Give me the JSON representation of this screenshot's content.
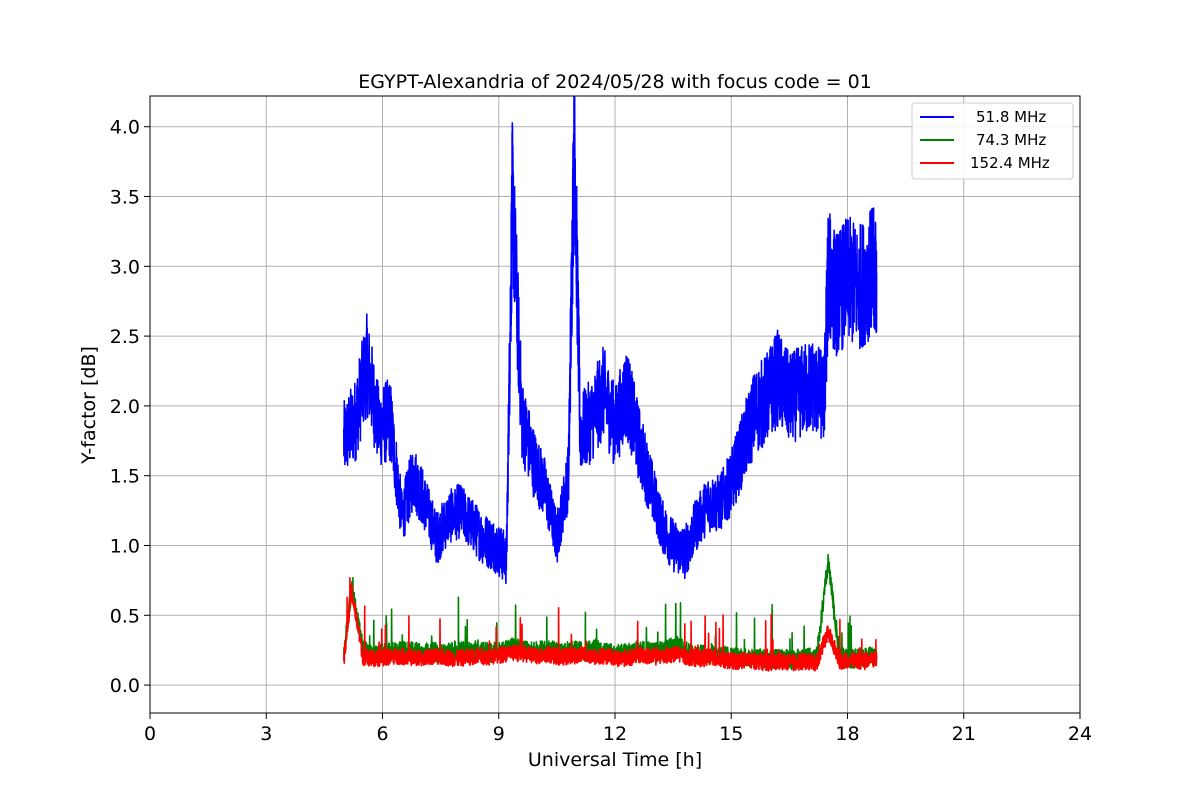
{
  "chart_data": {
    "type": "line",
    "title": "EGYPT-Alexandria of 2024/05/28 with focus code = 01",
    "xlabel": "Universal Time [h]",
    "ylabel": "Y-factor [dB]",
    "xlim": [
      0,
      24
    ],
    "ylim": [
      -0.2,
      4.22
    ],
    "xticks": [
      "0",
      "3",
      "6",
      "9",
      "12",
      "15",
      "18",
      "21",
      "24"
    ],
    "yticks": [
      "0.0",
      "0.5",
      "1.0",
      "1.5",
      "2.0",
      "2.5",
      "3.0",
      "3.5",
      "4.0"
    ],
    "grid": true,
    "legend_position": "top-right",
    "series": [
      {
        "name": "51.8 MHz",
        "color": "#0000ff",
        "x": [
          5.0,
          5.3,
          5.6,
          5.9,
          6.2,
          6.5,
          6.8,
          7.1,
          7.4,
          7.7,
          8.0,
          8.3,
          8.6,
          8.9,
          9.2,
          9.35,
          9.6,
          9.9,
          10.2,
          10.5,
          10.8,
          10.95,
          11.1,
          11.4,
          11.7,
          12.0,
          12.3,
          12.6,
          12.9,
          13.2,
          13.5,
          13.8,
          14.1,
          14.4,
          14.7,
          15.0,
          15.3,
          15.6,
          15.9,
          16.2,
          16.5,
          16.8,
          17.1,
          17.4,
          17.5,
          17.7,
          18.0,
          18.3,
          18.6,
          18.75
        ],
        "values": [
          1.75,
          1.9,
          2.3,
          1.85,
          1.9,
          1.2,
          1.5,
          1.3,
          1.05,
          1.2,
          1.25,
          1.15,
          1.05,
          1.0,
          0.9,
          3.5,
          1.9,
          1.6,
          1.4,
          1.05,
          1.5,
          4.02,
          1.8,
          1.9,
          2.1,
          1.85,
          2.1,
          1.75,
          1.45,
          1.15,
          1.0,
          0.95,
          1.15,
          1.3,
          1.3,
          1.45,
          1.7,
          1.95,
          2.05,
          2.2,
          2.05,
          2.1,
          2.15,
          2.05,
          2.95,
          2.8,
          2.9,
          2.85,
          2.95,
          2.95
        ]
      },
      {
        "name": "74.3 MHz",
        "color": "#008000",
        "x": [
          5.0,
          5.2,
          5.5,
          5.8,
          6.1,
          6.4,
          6.7,
          7.0,
          7.3,
          7.6,
          7.9,
          8.2,
          8.5,
          8.8,
          9.1,
          9.4,
          9.7,
          10.0,
          10.3,
          10.6,
          10.9,
          11.2,
          11.5,
          11.8,
          12.1,
          12.4,
          12.7,
          13.0,
          13.3,
          13.6,
          13.9,
          14.2,
          14.5,
          14.8,
          15.1,
          15.4,
          15.7,
          16.0,
          16.3,
          16.6,
          16.9,
          17.2,
          17.5,
          17.8,
          18.1,
          18.4,
          18.75
        ],
        "values": [
          0.2,
          0.7,
          0.25,
          0.22,
          0.23,
          0.24,
          0.25,
          0.23,
          0.24,
          0.22,
          0.25,
          0.24,
          0.26,
          0.23,
          0.25,
          0.27,
          0.25,
          0.24,
          0.26,
          0.23,
          0.25,
          0.24,
          0.26,
          0.23,
          0.22,
          0.24,
          0.25,
          0.23,
          0.26,
          0.28,
          0.24,
          0.22,
          0.23,
          0.21,
          0.2,
          0.19,
          0.2,
          0.18,
          0.19,
          0.18,
          0.2,
          0.19,
          0.88,
          0.2,
          0.19,
          0.2,
          0.21
        ]
      },
      {
        "name": "152.4 MHz",
        "color": "#ff0000",
        "x": [
          5.0,
          5.2,
          5.5,
          5.8,
          6.1,
          6.4,
          6.7,
          7.0,
          7.3,
          7.6,
          7.9,
          8.2,
          8.5,
          8.8,
          9.1,
          9.4,
          9.7,
          10.0,
          10.3,
          10.6,
          10.9,
          11.2,
          11.5,
          11.8,
          12.1,
          12.4,
          12.7,
          13.0,
          13.3,
          13.6,
          13.9,
          14.2,
          14.5,
          14.8,
          15.1,
          15.4,
          15.7,
          16.0,
          16.3,
          16.6,
          16.9,
          17.2,
          17.5,
          17.8,
          18.1,
          18.4,
          18.75
        ],
        "values": [
          0.18,
          0.68,
          0.2,
          0.19,
          0.2,
          0.21,
          0.2,
          0.19,
          0.21,
          0.2,
          0.19,
          0.2,
          0.21,
          0.2,
          0.22,
          0.23,
          0.22,
          0.21,
          0.22,
          0.2,
          0.21,
          0.22,
          0.2,
          0.21,
          0.19,
          0.2,
          0.22,
          0.2,
          0.21,
          0.22,
          0.2,
          0.19,
          0.2,
          0.18,
          0.17,
          0.18,
          0.17,
          0.16,
          0.17,
          0.16,
          0.17,
          0.16,
          0.38,
          0.17,
          0.18,
          0.17,
          0.18
        ]
      }
    ]
  }
}
